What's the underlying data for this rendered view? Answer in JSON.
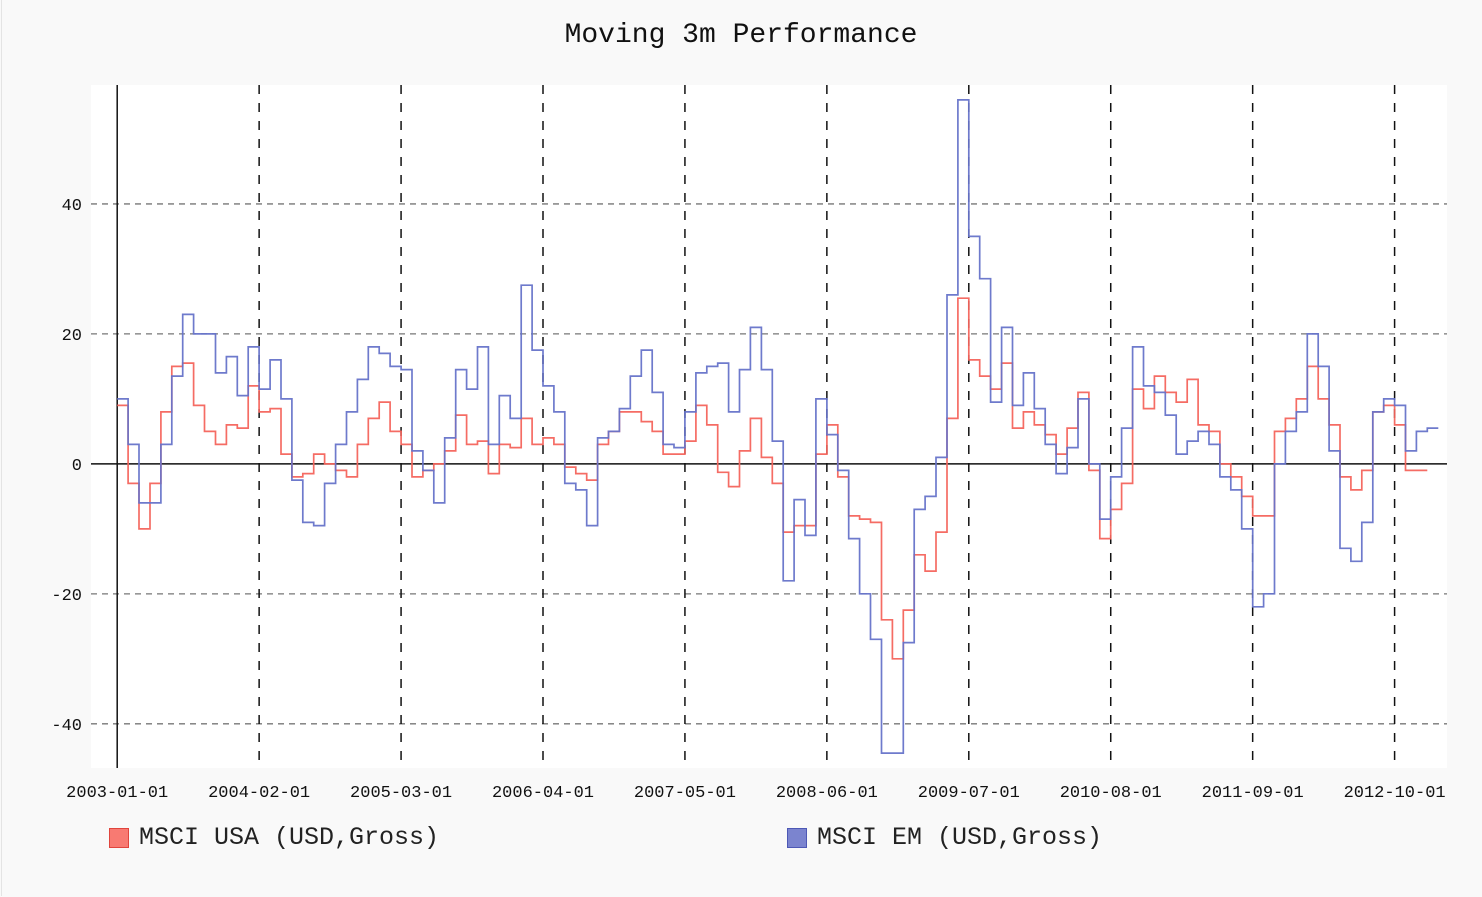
{
  "chart_data": {
    "type": "line",
    "title": "Moving 3m Performance",
    "xlabel": "",
    "ylabel": "",
    "x_start": "2003-01",
    "x_step": "month",
    "xlim_months": [
      -2.4,
      121.8
    ],
    "ylim": [
      -46.8,
      58.3
    ],
    "yticks": [
      -40,
      -20,
      0,
      20,
      40
    ],
    "xticks": [
      {
        "label": "2003-01-01",
        "month": 0
      },
      {
        "label": "2004-02-01",
        "month": 13
      },
      {
        "label": "2005-03-01",
        "month": 26
      },
      {
        "label": "2006-04-01",
        "month": 39
      },
      {
        "label": "2007-05-01",
        "month": 52
      },
      {
        "label": "2008-06-01",
        "month": 65
      },
      {
        "label": "2009-07-01",
        "month": 78
      },
      {
        "label": "2010-08-01",
        "month": 91
      },
      {
        "label": "2011-09-01",
        "month": 104
      },
      {
        "label": "2012-10-01",
        "month": 117
      }
    ],
    "grid": true,
    "legend_position": "bottom",
    "series": [
      {
        "name": "MSCI USA (USD,Gross)",
        "color": "#f4645c",
        "values": [
          9,
          -3,
          -10,
          -3,
          8,
          15,
          15.5,
          9,
          5,
          3,
          6,
          5.5,
          12,
          8,
          8.5,
          1.5,
          -2,
          -1.5,
          1.5,
          0,
          -1,
          -2,
          3,
          7,
          9.5,
          5,
          3,
          -2,
          -1,
          0,
          2,
          7.5,
          3,
          3.5,
          -1.5,
          3,
          2.5,
          7,
          3,
          4,
          3,
          -0.5,
          -1.5,
          -2.5,
          3,
          5,
          8,
          8,
          6.5,
          5,
          1.5,
          1.5,
          3.5,
          9,
          6,
          -1.3,
          -3.5,
          2,
          7,
          1,
          -3,
          -10.5,
          -9.5,
          -9.5,
          1.5,
          6,
          -2,
          -8,
          -8.5,
          -9,
          -24,
          -30,
          -22.5,
          -14,
          -16.5,
          -10.5,
          7,
          25.5,
          16,
          13.5,
          11.5,
          15.5,
          5.5,
          8,
          6,
          4.5,
          1.5,
          5.5,
          11,
          -1,
          -11.5,
          -7,
          -3,
          11.5,
          8.5,
          13.5,
          11,
          9.5,
          13,
          6,
          5,
          0,
          -2,
          -5,
          -8,
          -8,
          5,
          7,
          10,
          15,
          10,
          6,
          -2,
          -4,
          -1,
          8,
          9,
          6,
          -1,
          -1
        ]
      },
      {
        "name": "MSCI EM (USD,Gross)",
        "color": "#6673c9",
        "values": [
          10,
          3,
          -6,
          -6,
          3,
          13.5,
          23,
          20,
          20,
          14,
          16.5,
          10.5,
          18,
          11.5,
          16,
          10,
          -2.5,
          -9,
          -9.5,
          -3,
          3,
          8,
          13,
          18,
          17,
          15,
          14.5,
          2,
          -1,
          -6,
          4,
          14.5,
          11.5,
          18,
          3,
          10.5,
          7,
          27.5,
          17.5,
          12,
          8,
          -3,
          -4,
          -9.5,
          4,
          5,
          8.5,
          13.5,
          17.5,
          11,
          3,
          2.5,
          8,
          14,
          15,
          15.5,
          8,
          14.5,
          21,
          14.5,
          3.5,
          -18,
          -5.5,
          -11,
          10,
          4.5,
          -1,
          -11.5,
          -20,
          -27,
          -44.5,
          -44.5,
          -27.5,
          -7,
          -5,
          1,
          26,
          56,
          35,
          28.5,
          9.5,
          21,
          9,
          14,
          8.5,
          3,
          -1.5,
          2.5,
          10,
          0,
          -8.5,
          -2,
          5.5,
          18,
          12,
          11,
          7.5,
          1.5,
          3.5,
          5,
          3,
          -2,
          -4,
          -10,
          -22,
          -20,
          0,
          5,
          8,
          20,
          15,
          2,
          -13,
          -15,
          -9,
          8,
          10,
          9,
          2,
          5,
          5.5
        ]
      }
    ]
  }
}
